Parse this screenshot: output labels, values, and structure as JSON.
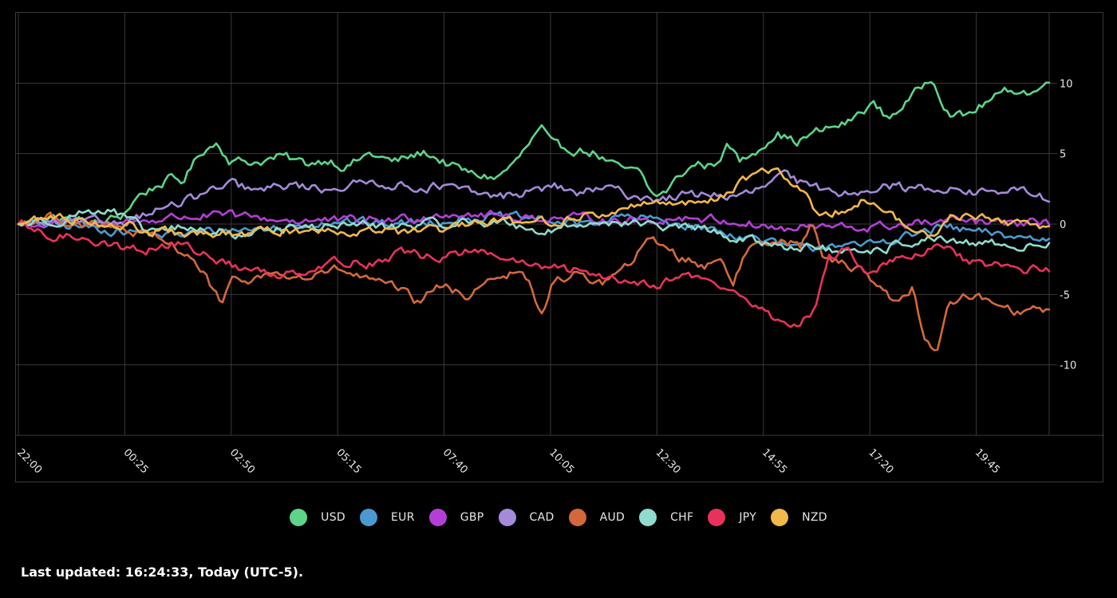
{
  "footer": {
    "last_updated": "Last updated: 16:24:33, Today (UTC-5)."
  },
  "colors": {
    "background": "#000000",
    "grid": "#3a3a3a",
    "text": "#e8e8e8"
  },
  "chart_data": {
    "type": "line",
    "title": "",
    "xlabel": "",
    "ylabel": "",
    "x_ticks": [
      "22:00",
      "00:25",
      "02:50",
      "05:15",
      "07:40",
      "10:05",
      "12:30",
      "14:55",
      "17:20",
      "19:45"
    ],
    "y_ticks": [
      10,
      5,
      0,
      -5,
      -10
    ],
    "ylim": [
      -15,
      15
    ],
    "grid": true,
    "legend_position": "bottom-center",
    "series": [
      {
        "name": "USD",
        "color": "#5dd48a",
        "anchors": [
          [
            0,
            0
          ],
          [
            40,
            0.5
          ],
          [
            100,
            0
          ],
          [
            130,
            0.6
          ],
          [
            150,
            2
          ],
          [
            190,
            3.2
          ],
          [
            205,
            3
          ],
          [
            230,
            5.2
          ],
          [
            250,
            5.8
          ],
          [
            265,
            4.5
          ],
          [
            300,
            4.4
          ],
          [
            330,
            4.8
          ],
          [
            360,
            4.3
          ],
          [
            390,
            4.6
          ],
          [
            410,
            4
          ],
          [
            440,
            5
          ],
          [
            470,
            4.4
          ],
          [
            510,
            5.1
          ],
          [
            540,
            4.2
          ],
          [
            570,
            3.5
          ],
          [
            600,
            3.3
          ],
          [
            625,
            4.5
          ],
          [
            655,
            6.8
          ],
          [
            670,
            5.5
          ],
          [
            720,
            5.1
          ],
          [
            750,
            4
          ],
          [
            780,
            3.6
          ],
          [
            795,
            2
          ],
          [
            810,
            2.2
          ],
          [
            830,
            3.5
          ],
          [
            850,
            4.3
          ],
          [
            870,
            4.1
          ],
          [
            890,
            5.6
          ],
          [
            905,
            4.4
          ],
          [
            930,
            5.5
          ],
          [
            950,
            6.5
          ],
          [
            975,
            5.8
          ],
          [
            1000,
            6.5
          ],
          [
            1040,
            7.2
          ],
          [
            1070,
            8.6
          ],
          [
            1090,
            7.5
          ],
          [
            1120,
            9
          ],
          [
            1145,
            10.5
          ],
          [
            1165,
            8
          ],
          [
            1185,
            7.6
          ],
          [
            1215,
            8.7
          ],
          [
            1245,
            9.6
          ],
          [
            1270,
            9.3
          ],
          [
            1292,
            10
          ]
        ]
      },
      {
        "name": "EUR",
        "color": "#4a9ad1",
        "anchors": [
          [
            0,
            0
          ],
          [
            80,
            -0.2
          ],
          [
            130,
            -0.5
          ],
          [
            190,
            -0.8
          ],
          [
            260,
            -0.4
          ],
          [
            330,
            -0.3
          ],
          [
            400,
            0.3
          ],
          [
            460,
            0
          ],
          [
            520,
            0.2
          ],
          [
            580,
            0.5
          ],
          [
            640,
            0.4
          ],
          [
            700,
            0
          ],
          [
            760,
            0.5
          ],
          [
            800,
            0.3
          ],
          [
            860,
            -0.3
          ],
          [
            920,
            -1
          ],
          [
            960,
            -1.6
          ],
          [
            990,
            -1.8
          ],
          [
            1020,
            -1.3
          ],
          [
            1050,
            -1.7
          ],
          [
            1090,
            -1.1
          ],
          [
            1120,
            -0.8
          ],
          [
            1160,
            -0.2
          ],
          [
            1200,
            -0.6
          ],
          [
            1250,
            -0.9
          ],
          [
            1292,
            -1.1
          ]
        ]
      },
      {
        "name": "GBP",
        "color": "#b53fd6",
        "anchors": [
          [
            0,
            0
          ],
          [
            80,
            0
          ],
          [
            150,
            0.2
          ],
          [
            200,
            0.5
          ],
          [
            260,
            0.6
          ],
          [
            330,
            0.3
          ],
          [
            400,
            0.2
          ],
          [
            470,
            0.3
          ],
          [
            540,
            0.8
          ],
          [
            600,
            0.6
          ],
          [
            660,
            0.4
          ],
          [
            720,
            0.4
          ],
          [
            780,
            0.2
          ],
          [
            840,
            0.5
          ],
          [
            880,
            0.3
          ],
          [
            920,
            0
          ],
          [
            960,
            -0.4
          ],
          [
            1000,
            -0.2
          ],
          [
            1060,
            -0.3
          ],
          [
            1120,
            0
          ],
          [
            1180,
            0.2
          ],
          [
            1240,
            0
          ],
          [
            1292,
            0.1
          ]
        ]
      },
      {
        "name": "CAD",
        "color": "#a48ad9",
        "anchors": [
          [
            0,
            0
          ],
          [
            80,
            0.1
          ],
          [
            130,
            0.2
          ],
          [
            160,
            0.8
          ],
          [
            200,
            1.4
          ],
          [
            240,
            2.3
          ],
          [
            270,
            2.8
          ],
          [
            300,
            2.3
          ],
          [
            340,
            2.8
          ],
          [
            380,
            2.5
          ],
          [
            420,
            2.8
          ],
          [
            450,
            3
          ],
          [
            490,
            2.6
          ],
          [
            530,
            2.7
          ],
          [
            570,
            2.2
          ],
          [
            600,
            1.9
          ],
          [
            640,
            2.3
          ],
          [
            670,
            2.7
          ],
          [
            700,
            2.2
          ],
          [
            740,
            2.5
          ],
          [
            770,
            2
          ],
          [
            800,
            1.8
          ],
          [
            830,
            2
          ],
          [
            870,
            2.2
          ],
          [
            900,
            1.8
          ],
          [
            930,
            2.5
          ],
          [
            960,
            3.5
          ],
          [
            990,
            2.6
          ],
          [
            1040,
            2.2
          ],
          [
            1080,
            2.8
          ],
          [
            1120,
            2.5
          ],
          [
            1160,
            2.6
          ],
          [
            1200,
            2.2
          ],
          [
            1240,
            2.4
          ],
          [
            1270,
            2.2
          ],
          [
            1292,
            1.8
          ]
        ]
      },
      {
        "name": "AUD",
        "color": "#d4683a",
        "anchors": [
          [
            0,
            0
          ],
          [
            40,
            0.5
          ],
          [
            80,
            0
          ],
          [
            120,
            -0.3
          ],
          [
            160,
            -0.8
          ],
          [
            190,
            -1.5
          ],
          [
            215,
            -2.2
          ],
          [
            235,
            -3.8
          ],
          [
            255,
            -5.7
          ],
          [
            270,
            -4
          ],
          [
            300,
            -3.8
          ],
          [
            320,
            -3.5
          ],
          [
            360,
            -3.9
          ],
          [
            400,
            -3.2
          ],
          [
            440,
            -4
          ],
          [
            480,
            -4.7
          ],
          [
            500,
            -5.6
          ],
          [
            530,
            -4.3
          ],
          [
            560,
            -5.2
          ],
          [
            590,
            -3.8
          ],
          [
            620,
            -3.5
          ],
          [
            640,
            -4
          ],
          [
            655,
            -6.8
          ],
          [
            670,
            -4
          ],
          [
            700,
            -3.6
          ],
          [
            730,
            -4.2
          ],
          [
            760,
            -3.2
          ],
          [
            790,
            -1.2
          ],
          [
            810,
            -1.4
          ],
          [
            830,
            -2.4
          ],
          [
            860,
            -3
          ],
          [
            880,
            -2.2
          ],
          [
            895,
            -4.2
          ],
          [
            915,
            -1.8
          ],
          [
            930,
            -1.2
          ],
          [
            955,
            -1
          ],
          [
            980,
            -1.5
          ],
          [
            996,
            0
          ],
          [
            1010,
            -2.5
          ],
          [
            1030,
            -2.8
          ],
          [
            1060,
            -3.2
          ],
          [
            1080,
            -4.6
          ],
          [
            1100,
            -5.5
          ],
          [
            1120,
            -4.5
          ],
          [
            1135,
            -7.8
          ],
          [
            1150,
            -9.2
          ],
          [
            1165,
            -6
          ],
          [
            1190,
            -5
          ],
          [
            1210,
            -5.3
          ],
          [
            1230,
            -5.6
          ],
          [
            1250,
            -6.2
          ],
          [
            1270,
            -6
          ],
          [
            1292,
            -6.2
          ]
        ]
      },
      {
        "name": "CHF",
        "color": "#8fdbcd",
        "anchors": [
          [
            0,
            0
          ],
          [
            50,
            0.3
          ],
          [
            90,
            1
          ],
          [
            120,
            0.8
          ],
          [
            160,
            -0.5
          ],
          [
            200,
            -0.3
          ],
          [
            240,
            -0.5
          ],
          [
            280,
            -0.8
          ],
          [
            320,
            -0.3
          ],
          [
            360,
            -0.3
          ],
          [
            420,
            0
          ],
          [
            460,
            -0.2
          ],
          [
            520,
            0
          ],
          [
            580,
            0.2
          ],
          [
            620,
            0
          ],
          [
            660,
            -0.6
          ],
          [
            700,
            0
          ],
          [
            750,
            0.2
          ],
          [
            800,
            -0.2
          ],
          [
            850,
            -0.3
          ],
          [
            900,
            -1
          ],
          [
            950,
            -1.5
          ],
          [
            990,
            -1.6
          ],
          [
            1030,
            -2
          ],
          [
            1060,
            -2.3
          ],
          [
            1100,
            -1.5
          ],
          [
            1140,
            -1
          ],
          [
            1180,
            -1.5
          ],
          [
            1230,
            -1.4
          ],
          [
            1260,
            -1.6
          ],
          [
            1292,
            -1.5
          ]
        ]
      },
      {
        "name": "JPY",
        "color": "#e8325a",
        "anchors": [
          [
            0,
            0
          ],
          [
            40,
            -1
          ],
          [
            80,
            -0.8
          ],
          [
            120,
            -1.6
          ],
          [
            160,
            -1.8
          ],
          [
            200,
            -1.4
          ],
          [
            240,
            -2.3
          ],
          [
            280,
            -3.2
          ],
          [
            320,
            -3.6
          ],
          [
            360,
            -3.2
          ],
          [
            400,
            -2.6
          ],
          [
            440,
            -2.8
          ],
          [
            480,
            -2
          ],
          [
            520,
            -2.4
          ],
          [
            560,
            -2
          ],
          [
            600,
            -2.2
          ],
          [
            640,
            -3
          ],
          [
            680,
            -3.2
          ],
          [
            720,
            -3.5
          ],
          [
            760,
            -4
          ],
          [
            800,
            -4.2
          ],
          [
            840,
            -3.6
          ],
          [
            880,
            -4.4
          ],
          [
            910,
            -5.2
          ],
          [
            940,
            -6.5
          ],
          [
            970,
            -7.3
          ],
          [
            1000,
            -6
          ],
          [
            1015,
            -2.5
          ],
          [
            1040,
            -1.8
          ],
          [
            1060,
            -3.4
          ],
          [
            1090,
            -2.8
          ],
          [
            1130,
            -2.2
          ],
          [
            1160,
            -1.5
          ],
          [
            1190,
            -2.8
          ],
          [
            1230,
            -3
          ],
          [
            1260,
            -3.2
          ],
          [
            1292,
            -3.3
          ]
        ]
      },
      {
        "name": "NZD",
        "color": "#f2b84b",
        "anchors": [
          [
            0,
            0
          ],
          [
            40,
            0.5
          ],
          [
            80,
            0.3
          ],
          [
            120,
            0
          ],
          [
            160,
            -0.5
          ],
          [
            200,
            -0.7
          ],
          [
            240,
            -0.8
          ],
          [
            280,
            -0.7
          ],
          [
            320,
            -0.5
          ],
          [
            360,
            -0.4
          ],
          [
            400,
            -0.5
          ],
          [
            440,
            -0.3
          ],
          [
            480,
            -0.6
          ],
          [
            520,
            -0.5
          ],
          [
            560,
            -0.2
          ],
          [
            600,
            0.2
          ],
          [
            640,
            0.1
          ],
          [
            680,
            0.3
          ],
          [
            720,
            0.6
          ],
          [
            760,
            1
          ],
          [
            800,
            1.8
          ],
          [
            840,
            1.4
          ],
          [
            880,
            2
          ],
          [
            910,
            3.2
          ],
          [
            930,
            3.9
          ],
          [
            950,
            3.6
          ],
          [
            980,
            2.6
          ],
          [
            1000,
            0.8
          ],
          [
            1030,
            1
          ],
          [
            1060,
            1.8
          ],
          [
            1090,
            0.8
          ],
          [
            1120,
            -0.5
          ],
          [
            1150,
            -0.8
          ],
          [
            1170,
            0.6
          ],
          [
            1200,
            0.6
          ],
          [
            1240,
            0
          ],
          [
            1270,
            0
          ],
          [
            1292,
            -0.1
          ]
        ]
      }
    ]
  }
}
